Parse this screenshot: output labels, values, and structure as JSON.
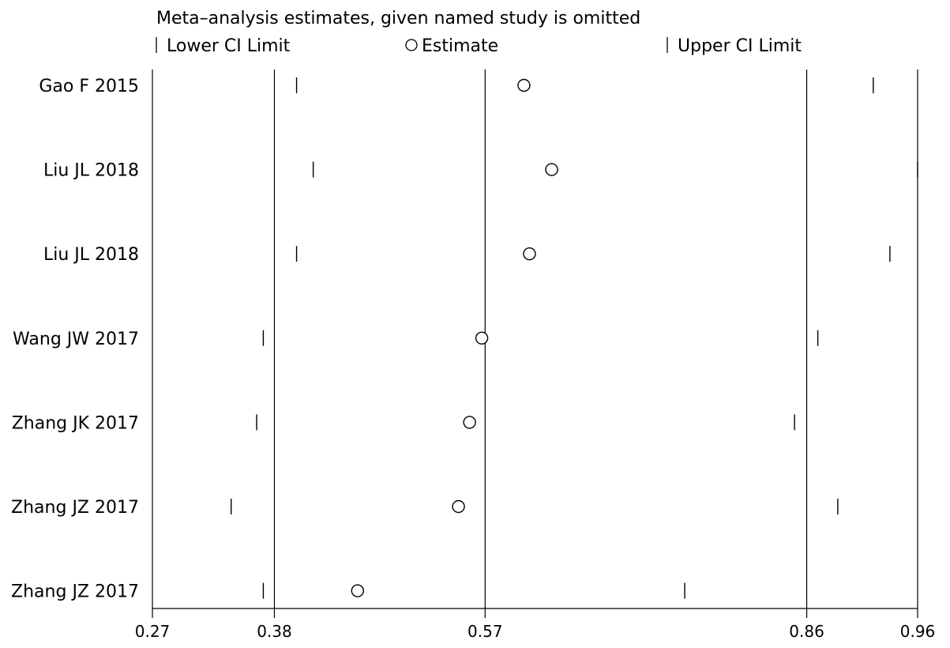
{
  "chart_data": {
    "type": "forest",
    "title": "Meta–analysis estimates, given named study is omitted",
    "legend": {
      "placement": "top",
      "items": [
        {
          "symbol": "tick",
          "label": "Lower CI Limit"
        },
        {
          "symbol": "circle",
          "label": "Estimate"
        },
        {
          "symbol": "tick",
          "label": "Upper CI Limit"
        }
      ]
    },
    "x_axis": {
      "range": [
        0.27,
        0.96
      ],
      "ticks": [
        {
          "value": 0.27,
          "label": "0.27"
        },
        {
          "value": 0.38,
          "label": "0.38"
        },
        {
          "value": 0.57,
          "label": "0.57"
        },
        {
          "value": 0.86,
          "label": "0.86"
        },
        {
          "value": 0.96,
          "label": "0.96"
        }
      ],
      "reference_lines": [
        0.38,
        0.57,
        0.86
      ]
    },
    "studies": [
      {
        "label": "Gao F 2015",
        "lower": 0.4,
        "estimate": 0.605,
        "upper": 0.92
      },
      {
        "label": "Liu JL 2018",
        "lower": 0.415,
        "estimate": 0.63,
        "upper": 0.96
      },
      {
        "label": "Liu JL 2018",
        "lower": 0.4,
        "estimate": 0.61,
        "upper": 0.935
      },
      {
        "label": "Wang JW 2017",
        "lower": 0.37,
        "estimate": 0.567,
        "upper": 0.87
      },
      {
        "label": "Zhang JK 2017",
        "lower": 0.364,
        "estimate": 0.556,
        "upper": 0.849
      },
      {
        "label": "Zhang JZ 2017",
        "lower": 0.341,
        "estimate": 0.546,
        "upper": 0.888
      },
      {
        "label": "Zhang JZ 2017",
        "lower": 0.37,
        "estimate": 0.455,
        "upper": 0.75
      }
    ]
  }
}
